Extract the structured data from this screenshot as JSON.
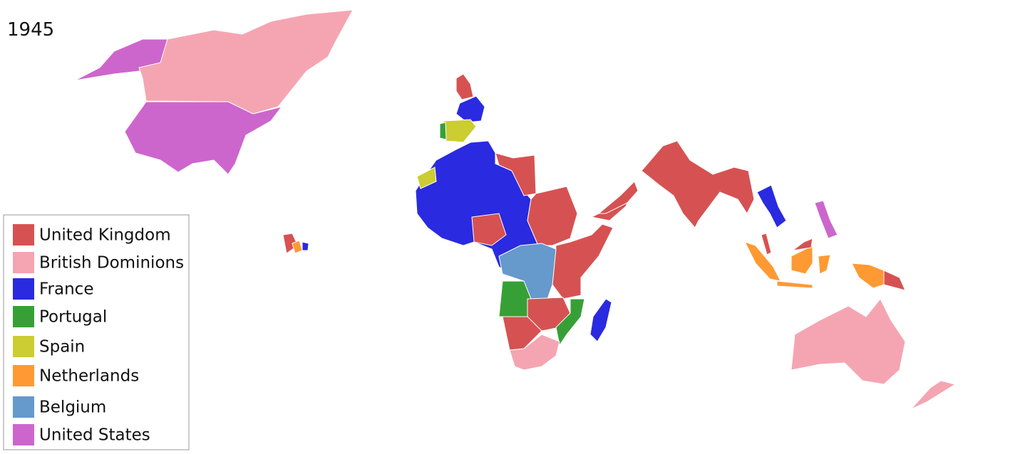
{
  "title": "1945",
  "legend": {
    "items": [
      {
        "name": "United Kingdom",
        "color": "#d65252"
      },
      {
        "name": "British Dominions",
        "color": "#f5a5b1"
      },
      {
        "name": "France",
        "color": "#2a2ae0"
      },
      {
        "name": "Portugal",
        "color": "#36a036"
      },
      {
        "name": "Spain",
        "color": "#cccc33"
      },
      {
        "name": "Netherlands",
        "color": "#ff9933"
      },
      {
        "name": "Belgium",
        "color": "#6699cc"
      },
      {
        "name": "United States",
        "color": "#cc66cc"
      }
    ]
  }
}
